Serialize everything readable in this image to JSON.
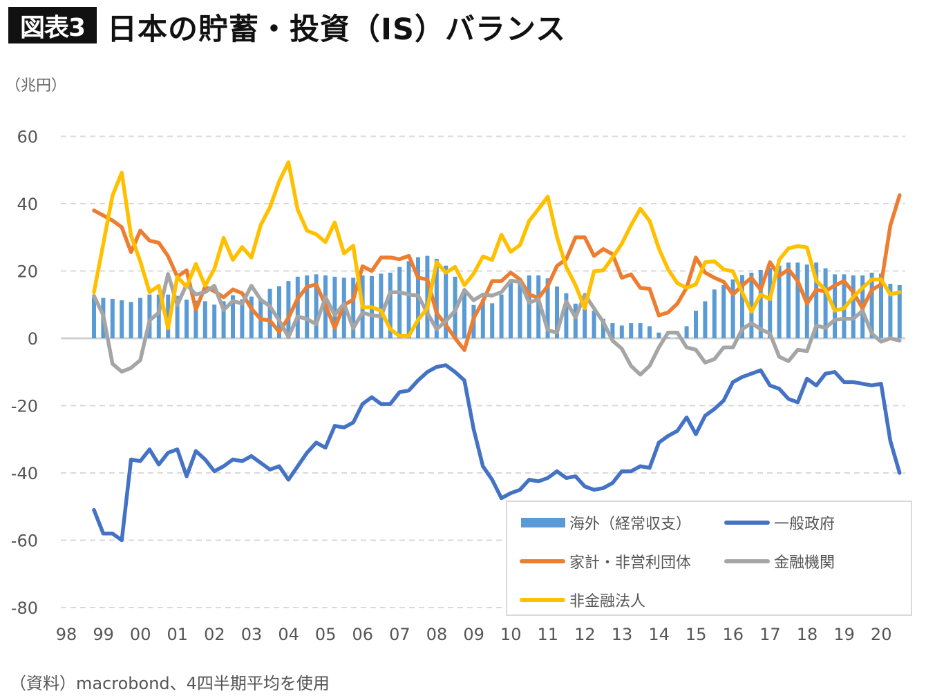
{
  "header": {
    "badge": "図表3",
    "title": "日本の貯蓄・投資（IS）バランス"
  },
  "unit_label": "（兆円）",
  "source": "（資料）macrobond、4四半期平均を使用",
  "chart_data": {
    "type": "bar+line",
    "title": "日本の貯蓄・投資（IS）バランス",
    "ylabel": "（兆円）",
    "ylim": [
      -80,
      60
    ],
    "yticks": [
      "60",
      "40",
      "20",
      "0",
      "-20",
      "-40",
      "-60",
      "-80"
    ],
    "ytick_values": [
      60,
      40,
      20,
      0,
      -20,
      -40,
      -60,
      -80
    ],
    "xticks": [
      "98",
      "99",
      "00",
      "01",
      "02",
      "03",
      "04",
      "05",
      "06",
      "07",
      "08",
      "09",
      "10",
      "11",
      "12",
      "13",
      "14",
      "15",
      "16",
      "17",
      "18",
      "19",
      "20"
    ],
    "x_start": "1998Q4",
    "frequency": "quarterly",
    "grid": true,
    "legend_position": "bottom-right",
    "series": [
      {
        "name": "海外（経常収支）",
        "kind": "bar",
        "color": "#5B9BD5",
        "values": [
          12.2,
          12,
          11.7,
          11.3,
          10.8,
          12,
          13,
          13,
          13,
          12.6,
          11.5,
          11.2,
          11,
          10,
          11,
          12.8,
          11.6,
          12.4,
          11.8,
          14.7,
          15.5,
          17,
          18.3,
          18.7,
          19,
          18.7,
          18.3,
          18,
          18,
          18.7,
          18.5,
          19.2,
          19.5,
          21.2,
          22.9,
          24.1,
          24.5,
          23.6,
          21.6,
          18.3,
          14.4,
          9.9,
          11.6,
          10.4,
          13,
          17.1,
          16.8,
          18.7,
          18.7,
          17.8,
          15.4,
          13.4,
          10.3,
          11,
          8.2,
          5.8,
          4.5,
          3.8,
          4.5,
          4.5,
          3.6,
          1.7,
          0.3,
          0.2,
          3.6,
          8.2,
          11,
          14.5,
          15.8,
          17.5,
          18.8,
          19.5,
          20.3,
          20.9,
          21.6,
          22.5,
          22.5,
          21.9,
          22.5,
          20.8,
          19,
          19,
          18.7,
          18.7,
          19.5,
          19.2,
          16.2,
          15.8
        ]
      },
      {
        "name": "一般政府",
        "kind": "line",
        "color": "#4472C4",
        "values": [
          -51,
          -58,
          -58,
          -60,
          -36,
          -36.5,
          -33,
          -37.5,
          -34,
          -33,
          -41,
          -33.5,
          -36,
          -39.5,
          -38,
          -36,
          -36.5,
          -35,
          -37,
          -39,
          -38,
          -42,
          -38,
          -34,
          -31,
          -32.5,
          -26,
          -26.5,
          -25,
          -19.5,
          -17.5,
          -19.5,
          -19.5,
          -16,
          -15.5,
          -12.5,
          -10,
          -8.5,
          -8,
          -10,
          -12.5,
          -27,
          -38,
          -42,
          -47.5,
          -46,
          -45,
          -42,
          -42.5,
          -41.5,
          -39.5,
          -41.5,
          -41,
          -44,
          -45,
          -44.5,
          -43,
          -39.5,
          -39.5,
          -38,
          -38.5,
          -31,
          -29,
          -27.5,
          -23.5,
          -28.5,
          -23,
          -21,
          -18.5,
          -13,
          -11.5,
          -10.5,
          -9.5,
          -14,
          -15,
          -18,
          -19,
          -12,
          -14,
          -10.5,
          -10,
          -13,
          -13,
          -13.5,
          -14,
          -13.5,
          -30.5,
          -40
        ]
      },
      {
        "name": "家計・非営利団体",
        "kind": "line",
        "color": "#ED7D31",
        "values": [
          38,
          36.5,
          35,
          33,
          25.6,
          32,
          29,
          28.4,
          24.4,
          18.3,
          20.2,
          8.5,
          15.3,
          14,
          12.2,
          14.5,
          13.4,
          8.8,
          5.7,
          5.3,
          1.9,
          6.1,
          11.8,
          15.3,
          16,
          9.9,
          3,
          9.9,
          11.5,
          21.4,
          20,
          24,
          24,
          23.5,
          24.5,
          18,
          17.5,
          7.5,
          4,
          0,
          -3.5,
          6,
          11,
          17,
          17,
          19.5,
          17.5,
          13,
          12,
          15.5,
          21.5,
          23.5,
          30,
          30,
          24.5,
          26.5,
          25,
          18,
          19,
          15,
          14.7,
          6.8,
          7.7,
          10.3,
          15,
          24,
          19.5,
          18,
          16.8,
          13,
          15.7,
          18,
          14.4,
          22.6,
          18.5,
          20.5,
          17,
          10.3,
          14.4,
          14,
          15.7,
          17,
          13.7,
          8.9,
          14.4,
          16,
          33.5,
          42.5
        ]
      },
      {
        "name": "金融機関",
        "kind": "line",
        "color": "#A5A5A5",
        "values": [
          12.6,
          6.9,
          -7.6,
          -9.9,
          -8.8,
          -6.5,
          5.3,
          7.6,
          19.1,
          9.9,
          16,
          13,
          13.7,
          15.6,
          8.4,
          11.1,
          10.3,
          15.6,
          11.5,
          9.5,
          5.3,
          0.4,
          6.5,
          5.7,
          4.2,
          12.2,
          6.9,
          10.3,
          3,
          7.6,
          6.8,
          6.5,
          13.7,
          13.7,
          13,
          12.7,
          7.5,
          2.7,
          5.1,
          8.2,
          14.4,
          11.3,
          13,
          12.7,
          13.7,
          17.1,
          16.8,
          10.6,
          11.6,
          2.4,
          1.7,
          11,
          6.2,
          13,
          8.9,
          4.8,
          -0.7,
          -3.1,
          -8.2,
          -10.8,
          -8.2,
          -2.7,
          1.7,
          1.7,
          -2.7,
          -3.4,
          -7.2,
          -6.2,
          -2.7,
          -2.7,
          2.7,
          4.5,
          2.7,
          1.4,
          -5.5,
          -6.8,
          -3.4,
          -3.8,
          3.8,
          3.1,
          5.5,
          5.8,
          5.8,
          8.2,
          1.4,
          -1,
          0,
          -0.7
        ]
      },
      {
        "name": "非金融法人",
        "kind": "line",
        "color": "#FFC000",
        "values": [
          13.7,
          28,
          42.4,
          49.2,
          30.5,
          22.9,
          13.7,
          15.6,
          3,
          18.3,
          15.3,
          22.1,
          15.6,
          20.6,
          29.8,
          23.3,
          27.1,
          24,
          33.6,
          38.9,
          46.6,
          52.3,
          38.2,
          32,
          30.9,
          28.6,
          34.4,
          25.2,
          27.5,
          9.2,
          9.2,
          8.2,
          2.7,
          0.7,
          0.7,
          5.5,
          8.9,
          22.6,
          19.5,
          21.2,
          15.8,
          19.2,
          24.3,
          23.3,
          30.8,
          25.7,
          27.7,
          34.9,
          38.4,
          42.1,
          30.1,
          21.2,
          15.8,
          8.9,
          19.9,
          20.2,
          24,
          28.1,
          33.6,
          38.5,
          34.9,
          26.7,
          20.5,
          16.4,
          15,
          16,
          22.6,
          22.9,
          20.5,
          19.9,
          13.7,
          7.9,
          13,
          11.6,
          23.3,
          26.7,
          27.4,
          27,
          17.1,
          14.4,
          8.2,
          8.9,
          12.3,
          15,
          17.5,
          17.5,
          13,
          13.7
        ]
      }
    ]
  }
}
